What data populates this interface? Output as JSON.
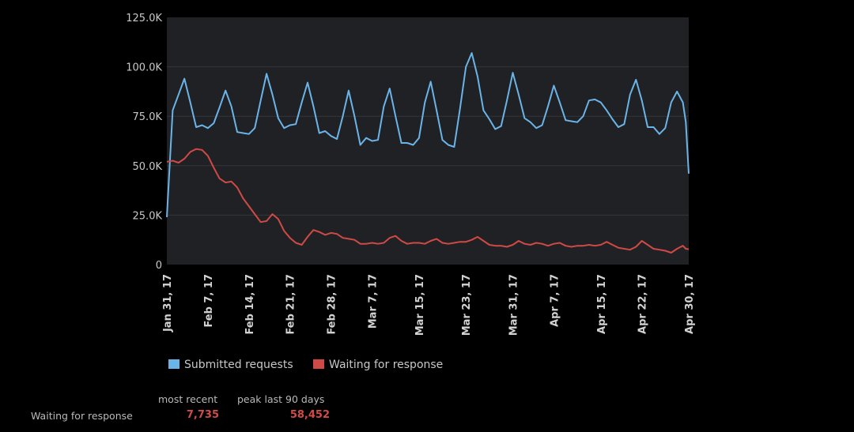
{
  "colors": {
    "background": "#000000",
    "plot_background": "#202124",
    "gridline": "#34363a",
    "series_submitted": "#6ab4e8",
    "series_waiting": "#cf4a46",
    "stat_value": "#d24b48"
  },
  "chart_data": {
    "type": "line",
    "title": "",
    "xlabel": "",
    "ylabel": "",
    "ylim": [
      0,
      125000
    ],
    "y_ticks": [
      {
        "value": 0,
        "label": "0"
      },
      {
        "value": 25000,
        "label": "25.0K"
      },
      {
        "value": 50000,
        "label": "50.0K"
      },
      {
        "value": 75000,
        "label": "75.0K"
      },
      {
        "value": 100000,
        "label": "100.0K"
      },
      {
        "value": 125000,
        "label": "125.0K"
      }
    ],
    "x_start": "2017-01-31",
    "x_end": "2017-04-30",
    "x_ticks": [
      {
        "date": "2017-01-31",
        "label": "Jan 31, 17"
      },
      {
        "date": "2017-02-07",
        "label": "Feb 7, 17"
      },
      {
        "date": "2017-02-14",
        "label": "Feb 14, 17"
      },
      {
        "date": "2017-02-21",
        "label": "Feb 21, 17"
      },
      {
        "date": "2017-02-28",
        "label": "Feb 28, 17"
      },
      {
        "date": "2017-03-07",
        "label": "Mar 7, 17"
      },
      {
        "date": "2017-03-15",
        "label": "Mar 15, 17"
      },
      {
        "date": "2017-03-23",
        "label": "Mar 23, 17"
      },
      {
        "date": "2017-03-31",
        "label": "Mar 31, 17"
      },
      {
        "date": "2017-04-07",
        "label": "Apr 7, 17"
      },
      {
        "date": "2017-04-15",
        "label": "Apr 15, 17"
      },
      {
        "date": "2017-04-22",
        "label": "Apr 22, 17"
      },
      {
        "date": "2017-04-30",
        "label": "Apr 30, 17"
      }
    ],
    "grid": true,
    "legend_position": "bottom-center",
    "series": [
      {
        "name": "Submitted requests",
        "color": "#6ab4e8",
        "points": [
          [
            "2017-01-31",
            24000
          ],
          [
            "2017-02-01",
            78000
          ],
          [
            "2017-02-02",
            86000
          ],
          [
            "2017-02-03",
            94000
          ],
          [
            "2017-02-04",
            82000
          ],
          [
            "2017-02-05",
            69500
          ],
          [
            "2017-02-06",
            70500
          ],
          [
            "2017-02-07",
            69000
          ],
          [
            "2017-02-08",
            71500
          ],
          [
            "2017-02-09",
            79500
          ],
          [
            "2017-02-10",
            88000
          ],
          [
            "2017-02-11",
            80000
          ],
          [
            "2017-02-12",
            67000
          ],
          [
            "2017-02-13",
            66500
          ],
          [
            "2017-02-14",
            66000
          ],
          [
            "2017-02-15",
            69000
          ],
          [
            "2017-02-16",
            83000
          ],
          [
            "2017-02-17",
            96500
          ],
          [
            "2017-02-18",
            86000
          ],
          [
            "2017-02-19",
            74000
          ],
          [
            "2017-02-20",
            69000
          ],
          [
            "2017-02-21",
            70500
          ],
          [
            "2017-02-22",
            71000
          ],
          [
            "2017-02-23",
            82000
          ],
          [
            "2017-02-24",
            92000
          ],
          [
            "2017-02-25",
            80000
          ],
          [
            "2017-02-26",
            66500
          ],
          [
            "2017-02-27",
            67500
          ],
          [
            "2017-02-28",
            65000
          ],
          [
            "2017-03-01",
            63500
          ],
          [
            "2017-03-02",
            75000
          ],
          [
            "2017-03-03",
            88000
          ],
          [
            "2017-03-04",
            75000
          ],
          [
            "2017-03-05",
            60500
          ],
          [
            "2017-03-06",
            64000
          ],
          [
            "2017-03-07",
            62500
          ],
          [
            "2017-03-08",
            63000
          ],
          [
            "2017-03-09",
            80000
          ],
          [
            "2017-03-10",
            89000
          ],
          [
            "2017-03-11",
            75000
          ],
          [
            "2017-03-12",
            61500
          ],
          [
            "2017-03-13",
            61500
          ],
          [
            "2017-03-14",
            60500
          ],
          [
            "2017-03-15",
            64000
          ],
          [
            "2017-03-16",
            82000
          ],
          [
            "2017-03-17",
            92500
          ],
          [
            "2017-03-18",
            78000
          ],
          [
            "2017-03-19",
            63000
          ],
          [
            "2017-03-20",
            60500
          ],
          [
            "2017-03-21",
            59500
          ],
          [
            "2017-03-22",
            79000
          ],
          [
            "2017-03-23",
            100000
          ],
          [
            "2017-03-24",
            107000
          ],
          [
            "2017-03-25",
            95000
          ],
          [
            "2017-03-26",
            78000
          ],
          [
            "2017-03-27",
            73500
          ],
          [
            "2017-03-28",
            68500
          ],
          [
            "2017-03-29",
            70000
          ],
          [
            "2017-03-30",
            83000
          ],
          [
            "2017-03-31",
            97000
          ],
          [
            "2017-04-01",
            86000
          ],
          [
            "2017-04-02",
            74000
          ],
          [
            "2017-04-03",
            72000
          ],
          [
            "2017-04-04",
            69000
          ],
          [
            "2017-04-05",
            70500
          ],
          [
            "2017-04-06",
            80000
          ],
          [
            "2017-04-07",
            90500
          ],
          [
            "2017-04-08",
            82000
          ],
          [
            "2017-04-09",
            73000
          ],
          [
            "2017-04-10",
            72500
          ],
          [
            "2017-04-11",
            72000
          ],
          [
            "2017-04-12",
            75000
          ],
          [
            "2017-04-13",
            83000
          ],
          [
            "2017-04-14",
            83500
          ],
          [
            "2017-04-15",
            82000
          ],
          [
            "2017-04-16",
            78000
          ],
          [
            "2017-04-17",
            73500
          ],
          [
            "2017-04-18",
            69500
          ],
          [
            "2017-04-19",
            71000
          ],
          [
            "2017-04-20",
            86000
          ],
          [
            "2017-04-21",
            93500
          ],
          [
            "2017-04-22",
            83000
          ],
          [
            "2017-04-23",
            69500
          ],
          [
            "2017-04-24",
            69500
          ],
          [
            "2017-04-25",
            66000
          ],
          [
            "2017-04-26",
            69000
          ],
          [
            "2017-04-27",
            82000
          ],
          [
            "2017-04-28",
            87500
          ],
          [
            "2017-04-29",
            82000
          ],
          [
            "2017-04-29T12:00",
            72000
          ],
          [
            "2017-04-30",
            46000
          ]
        ]
      },
      {
        "name": "Waiting for response",
        "color": "#cf4a46",
        "points": [
          [
            "2017-01-31",
            52000
          ],
          [
            "2017-02-01",
            52500
          ],
          [
            "2017-02-02",
            51500
          ],
          [
            "2017-02-03",
            53500
          ],
          [
            "2017-02-04",
            57000
          ],
          [
            "2017-02-05",
            58452
          ],
          [
            "2017-02-06",
            58000
          ],
          [
            "2017-02-07",
            55000
          ],
          [
            "2017-02-08",
            49000
          ],
          [
            "2017-02-09",
            43500
          ],
          [
            "2017-02-10",
            41500
          ],
          [
            "2017-02-11",
            42000
          ],
          [
            "2017-02-12",
            39000
          ],
          [
            "2017-02-13",
            33500
          ],
          [
            "2017-02-14",
            29500
          ],
          [
            "2017-02-15",
            25500
          ],
          [
            "2017-02-16",
            21500
          ],
          [
            "2017-02-17",
            22000
          ],
          [
            "2017-02-18",
            25500
          ],
          [
            "2017-02-19",
            23000
          ],
          [
            "2017-02-20",
            17000
          ],
          [
            "2017-02-21",
            13500
          ],
          [
            "2017-02-22",
            11000
          ],
          [
            "2017-02-23",
            10000
          ],
          [
            "2017-02-24",
            14000
          ],
          [
            "2017-02-25",
            17500
          ],
          [
            "2017-02-26",
            16500
          ],
          [
            "2017-02-27",
            15000
          ],
          [
            "2017-02-28",
            16000
          ],
          [
            "2017-03-01",
            15500
          ],
          [
            "2017-03-02",
            13500
          ],
          [
            "2017-03-03",
            13000
          ],
          [
            "2017-03-04",
            12500
          ],
          [
            "2017-03-05",
            10500
          ],
          [
            "2017-03-06",
            10500
          ],
          [
            "2017-03-07",
            11000
          ],
          [
            "2017-03-08",
            10500
          ],
          [
            "2017-03-09",
            11000
          ],
          [
            "2017-03-10",
            13500
          ],
          [
            "2017-03-11",
            14500
          ],
          [
            "2017-03-12",
            12000
          ],
          [
            "2017-03-13",
            10500
          ],
          [
            "2017-03-14",
            11000
          ],
          [
            "2017-03-15",
            11000
          ],
          [
            "2017-03-16",
            10500
          ],
          [
            "2017-03-17",
            12000
          ],
          [
            "2017-03-18",
            13000
          ],
          [
            "2017-03-19",
            11000
          ],
          [
            "2017-03-20",
            10500
          ],
          [
            "2017-03-21",
            11000
          ],
          [
            "2017-03-22",
            11500
          ],
          [
            "2017-03-23",
            11500
          ],
          [
            "2017-03-24",
            12500
          ],
          [
            "2017-03-25",
            14000
          ],
          [
            "2017-03-26",
            12000
          ],
          [
            "2017-03-27",
            10000
          ],
          [
            "2017-03-28",
            9500
          ],
          [
            "2017-03-29",
            9500
          ],
          [
            "2017-03-30",
            9000
          ],
          [
            "2017-03-31",
            10000
          ],
          [
            "2017-04-01",
            12000
          ],
          [
            "2017-04-02",
            10500
          ],
          [
            "2017-04-03",
            10000
          ],
          [
            "2017-04-04",
            11000
          ],
          [
            "2017-04-05",
            10500
          ],
          [
            "2017-04-06",
            9500
          ],
          [
            "2017-04-07",
            10500
          ],
          [
            "2017-04-08",
            11000
          ],
          [
            "2017-04-09",
            9500
          ],
          [
            "2017-04-10",
            9000
          ],
          [
            "2017-04-11",
            9500
          ],
          [
            "2017-04-12",
            9500
          ],
          [
            "2017-04-13",
            10000
          ],
          [
            "2017-04-14",
            9500
          ],
          [
            "2017-04-15",
            10000
          ],
          [
            "2017-04-16",
            11500
          ],
          [
            "2017-04-17",
            10000
          ],
          [
            "2017-04-18",
            8500
          ],
          [
            "2017-04-19",
            8000
          ],
          [
            "2017-04-20",
            7500
          ],
          [
            "2017-04-21",
            9000
          ],
          [
            "2017-04-22",
            12000
          ],
          [
            "2017-04-23",
            10000
          ],
          [
            "2017-04-24",
            8000
          ],
          [
            "2017-04-25",
            7500
          ],
          [
            "2017-04-26",
            7000
          ],
          [
            "2017-04-27",
            6000
          ],
          [
            "2017-04-28",
            8000
          ],
          [
            "2017-04-29",
            9500
          ],
          [
            "2017-04-29T12:00",
            8000
          ],
          [
            "2017-04-30",
            7735
          ]
        ]
      }
    ]
  },
  "stats": {
    "header_most_recent": "most recent",
    "header_peak": "peak last 90 days",
    "row_label": "Waiting for response",
    "most_recent_value": "7,735",
    "peak_value": "58,452"
  }
}
